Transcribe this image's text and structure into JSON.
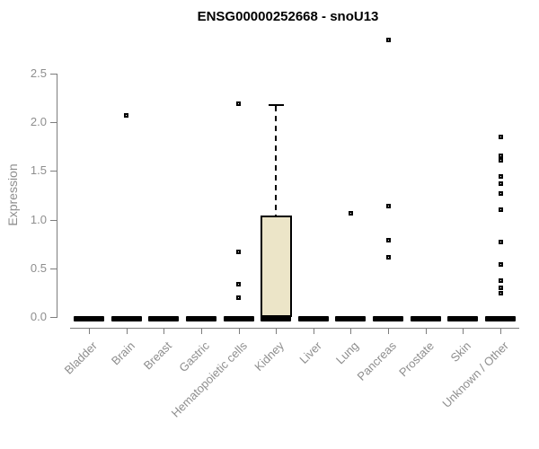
{
  "chart_data": {
    "type": "boxplot",
    "title": "ENSG00000252668 - snoU13",
    "ylabel": "Expression",
    "ylim": [
      0,
      2.5
    ],
    "yticks": [
      0,
      0.5,
      1,
      1.5,
      2,
      2.5
    ],
    "ytick_labels": [
      "0.0",
      "0.5",
      "1.0",
      "1.5",
      "2.0",
      "2.5"
    ],
    "grid": "off",
    "legend": "none",
    "categories": [
      "Bladder",
      "Brain",
      "Breast",
      "Gastric",
      "Hematopoietic cells",
      "Kidney",
      "Liver",
      "Lung",
      "Pancreas",
      "Prostate",
      "Skin",
      "Unknown / Other"
    ],
    "boxes": [
      {
        "category": "Bladder",
        "median": 0,
        "q1": 0,
        "q3": 0,
        "whisker_low": 0,
        "whisker_high": 0,
        "outliers": []
      },
      {
        "category": "Brain",
        "median": 0,
        "q1": 0,
        "q3": 0,
        "whisker_low": 0,
        "whisker_high": 0,
        "outliers": [
          2.07
        ]
      },
      {
        "category": "Breast",
        "median": 0,
        "q1": 0,
        "q3": 0,
        "whisker_low": 0,
        "whisker_high": 0,
        "outliers": []
      },
      {
        "category": "Gastric",
        "median": 0,
        "q1": 0,
        "q3": 0,
        "whisker_low": 0,
        "whisker_high": 0,
        "outliers": []
      },
      {
        "category": "Hematopoietic cells",
        "median": 0,
        "q1": 0,
        "q3": 0,
        "whisker_low": 0,
        "whisker_high": 0,
        "outliers": [
          2.19,
          0.67,
          0.34,
          0.2
        ]
      },
      {
        "category": "Kidney",
        "median": 0,
        "q1": 0,
        "q3": 1.04,
        "whisker_low": 0,
        "whisker_high": 2.17,
        "outliers": []
      },
      {
        "category": "Liver",
        "median": 0,
        "q1": 0,
        "q3": 0,
        "whisker_low": 0,
        "whisker_high": 0,
        "outliers": []
      },
      {
        "category": "Lung",
        "median": 0,
        "q1": 0,
        "q3": 0,
        "whisker_low": 0,
        "whisker_high": 0,
        "outliers": [
          1.07
        ]
      },
      {
        "category": "Pancreas",
        "median": 0,
        "q1": 0,
        "q3": 0,
        "whisker_low": 0,
        "whisker_high": 0,
        "outliers": [
          2.85,
          1.14,
          0.79,
          0.61
        ]
      },
      {
        "category": "Prostate",
        "median": 0,
        "q1": 0,
        "q3": 0,
        "whisker_low": 0,
        "whisker_high": 0,
        "outliers": []
      },
      {
        "category": "Skin",
        "median": 0,
        "q1": 0,
        "q3": 0,
        "whisker_low": 0,
        "whisker_high": 0,
        "outliers": []
      },
      {
        "category": "Unknown / Other",
        "median": 0,
        "q1": 0,
        "q3": 0,
        "whisker_low": 0,
        "whisker_high": 0,
        "outliers": [
          1.85,
          1.66,
          1.61,
          1.44,
          1.37,
          1.27,
          1.1,
          0.77,
          0.54,
          0.37,
          0.3,
          0.24
        ]
      }
    ],
    "colors": {
      "box_fill": "#ece5c8",
      "box_border": "#000000",
      "median": "#000000",
      "axis": "#7d7d7d",
      "tick_text": "#8e8e8e",
      "title_text": "#000000",
      "background": "#ffffff"
    }
  }
}
